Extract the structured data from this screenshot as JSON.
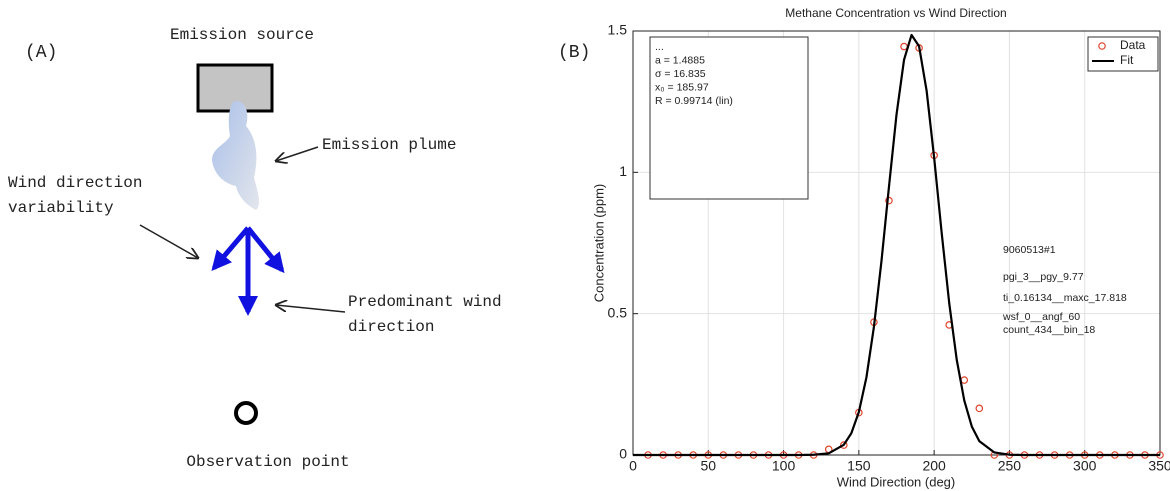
{
  "diagram": {
    "panel_label": "(A)",
    "source": "Emission source",
    "plume": "Emission plume",
    "variability": [
      "Wind direction",
      "variability"
    ],
    "predominant": [
      "Predominant wind",
      "direction"
    ],
    "observation": "Observation point"
  },
  "chart_data": {
    "type": "scatter",
    "panel_label": "(B)",
    "title": "Methane Concentration vs Wind Direction",
    "x_label": "Wind Direction (deg)",
    "y_label": "Concentration (ppm)",
    "xlim": [
      0,
      350
    ],
    "ylim": [
      0,
      1.5
    ],
    "xticks": [
      0,
      50,
      100,
      150,
      200,
      250,
      300,
      350
    ],
    "yticks": [
      0,
      0.5,
      1,
      1.5
    ],
    "grid": true,
    "legend": "upper right",
    "fit_box": [
      "...",
      "a = 1.4885",
      "σ = 16.835",
      "x₀ = 185.97",
      "R = 0.99714  (lin)"
    ],
    "annotations": [
      "9060513#1",
      "pgi_3__pgy_9.77",
      "ti_0.16134__maxc_17.818",
      "wsf_0__angf_60",
      "count_434__bin_18"
    ],
    "series": [
      {
        "name": "Data",
        "color": "#e0442c",
        "x": [
          10,
          20,
          30,
          40,
          50,
          60,
          70,
          80,
          90,
          100,
          110,
          120,
          130,
          140,
          150,
          160,
          170,
          180,
          190,
          200,
          210,
          220,
          230,
          240,
          250,
          260,
          270,
          280,
          290,
          300,
          310,
          320,
          330,
          340,
          350
        ],
        "values": [
          0,
          0,
          0,
          0,
          0,
          0,
          0,
          0,
          0,
          0,
          0,
          0,
          0.02,
          0.035,
          0.15,
          0.47,
          0.9,
          1.445,
          1.44,
          1.06,
          0.46,
          0.265,
          0.165,
          0,
          0,
          0,
          0,
          0,
          0,
          0,
          0,
          0,
          0,
          0,
          0
        ]
      },
      {
        "name": "Fit",
        "color": "#000000",
        "x": [
          0,
          100,
          110,
          120,
          130,
          140,
          145,
          150,
          155,
          160,
          165,
          170,
          175,
          180,
          185,
          190,
          195,
          200,
          205,
          210,
          215,
          220,
          225,
          230,
          240,
          250,
          260,
          270,
          350
        ],
        "values": [
          0,
          0,
          0,
          0.001,
          0.006,
          0.036,
          0.077,
          0.152,
          0.274,
          0.453,
          0.685,
          0.949,
          1.204,
          1.398,
          1.486,
          1.446,
          1.289,
          1.052,
          0.786,
          0.538,
          0.337,
          0.193,
          0.101,
          0.049,
          0.009,
          0.001,
          0,
          0,
          0
        ]
      }
    ]
  }
}
